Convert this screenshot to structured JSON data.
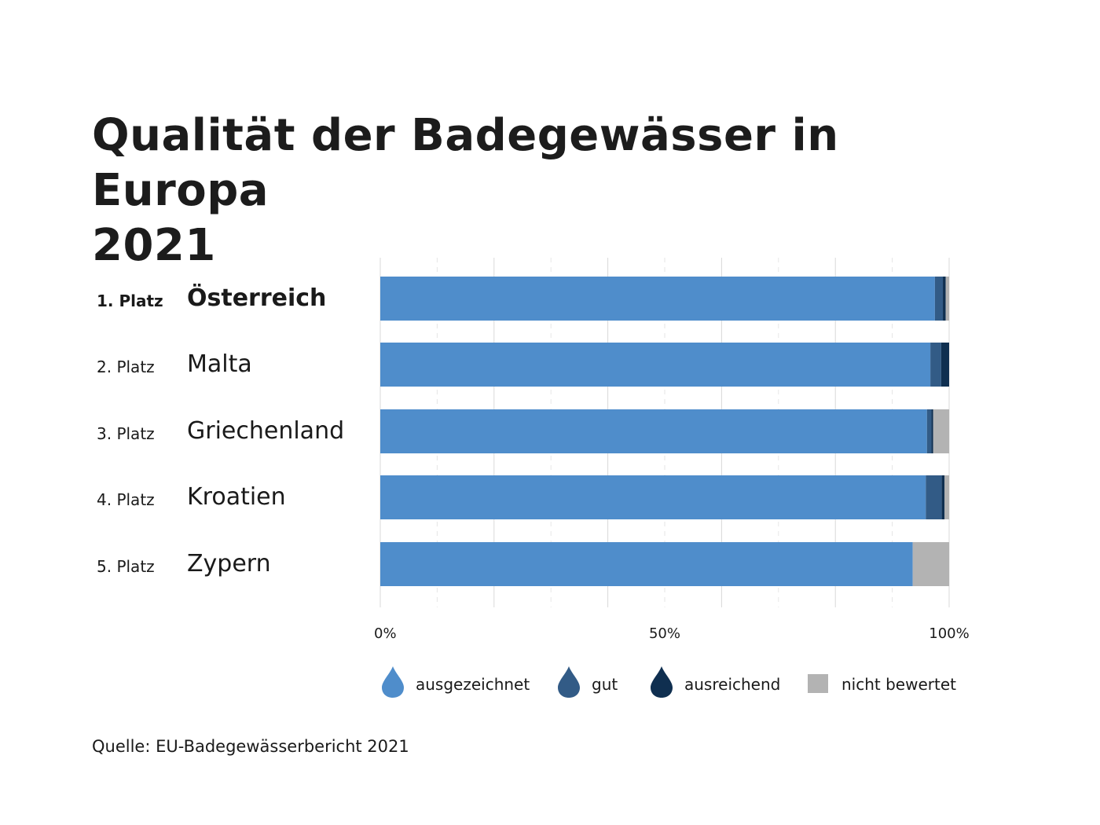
{
  "title_line1": "Qualität der Badegewässer in Europa",
  "title_line2": "2021",
  "source": "Quelle: EU-Badegewässerbericht 2021",
  "chart_data": {
    "type": "bar",
    "orientation": "horizontal",
    "stacked": true,
    "title": "Qualität der Badegewässer in Europa 2021",
    "ranks": [
      "1. Platz",
      "2. Platz",
      "3. Platz",
      "4. Platz",
      "5. Platz"
    ],
    "categories": [
      "Österreich",
      "Malta",
      "Griechenland",
      "Kroatien",
      "Zypern"
    ],
    "highlight_index": 0,
    "series": [
      {
        "name": "ausgezeichnet",
        "color": "#4f8dcb",
        "values": [
          97.5,
          96.7,
          96.1,
          95.9,
          93.6
        ]
      },
      {
        "name": "gut",
        "color": "#325b86",
        "values": [
          1.4,
          1.9,
          0.8,
          2.8,
          0
        ]
      },
      {
        "name": "ausreichend",
        "color": "#0f2f50",
        "values": [
          0.5,
          1.4,
          0.3,
          0.5,
          0
        ]
      },
      {
        "name": "nicht bewertet",
        "color": "#b3b3b3",
        "values": [
          0.6,
          0,
          2.8,
          0.8,
          6.4
        ]
      }
    ],
    "xlim": [
      0,
      100
    ],
    "xticks": [
      0,
      50,
      100
    ],
    "xtick_labels": [
      "0%",
      "50%",
      "100%"
    ],
    "grid": true,
    "legend_position": "bottom",
    "legend_icons": [
      "drop-icon",
      "drop-icon",
      "drop-icon",
      "square-icon"
    ]
  }
}
